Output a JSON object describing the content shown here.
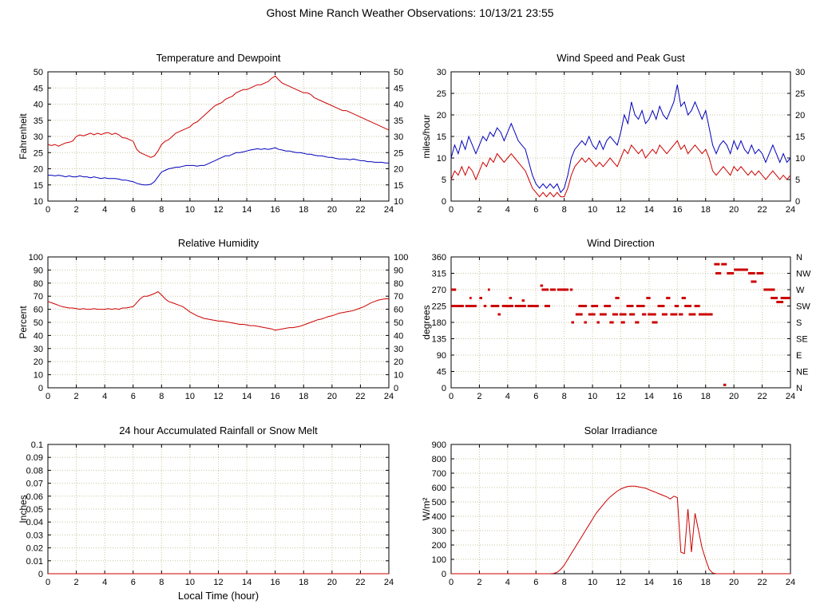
{
  "title": "Ghost Mine Ranch Weather Observations: 10/13/21 23:55",
  "theme": {
    "background": "#ffffff",
    "grid_color": "#c9c5a0",
    "axis_color": "#000000",
    "series_red": "#cc0000",
    "series_blue": "#0000bb"
  },
  "chart_data": [
    {
      "id": "temperature-dewpoint",
      "type": "line",
      "title": "Temperature and Dewpoint",
      "ylabel": "Fahrenheit",
      "xlim": [
        0,
        24
      ],
      "xtick": 2,
      "ylim": [
        10,
        50
      ],
      "ytick": 5,
      "right_labels": "mirror",
      "x_step": 0.25,
      "series": [
        {
          "name": "Temperature",
          "color": "#cc0000",
          "values": [
            27.5,
            27.2,
            27.5,
            27,
            27.5,
            28,
            28.2,
            28.6,
            30,
            30.5,
            30.2,
            30.6,
            31,
            30.5,
            31,
            30.6,
            31,
            31.2,
            30.6,
            31,
            30.5,
            29.6,
            29.5,
            29,
            28.5,
            26,
            25,
            24.5,
            24,
            23.5,
            24,
            25.5,
            27.5,
            28.5,
            29,
            30,
            31,
            31.5,
            32,
            32.5,
            33,
            34,
            34.5,
            35.5,
            36.5,
            37.5,
            38.5,
            39.5,
            40,
            40.5,
            41.5,
            42,
            42.5,
            43.5,
            44,
            44.5,
            44.5,
            45,
            45.5,
            46,
            46,
            46.5,
            47,
            48,
            48.7,
            47.5,
            46.5,
            46,
            45.5,
            45,
            44.5,
            44,
            43.5,
            43.5,
            43,
            42,
            41.5,
            41,
            40.5,
            40,
            39.5,
            39,
            38.5,
            38,
            38,
            37.5,
            37,
            36.5,
            36,
            35.5,
            35,
            34.5,
            34,
            33.5,
            33,
            32.5,
            32
          ]
        },
        {
          "name": "Dewpoint",
          "color": "#0000bb",
          "values": [
            18,
            18,
            17.8,
            18,
            17.8,
            17.5,
            17.8,
            17.5,
            17.5,
            17.8,
            17.5,
            17.5,
            17.2,
            17.5,
            17.2,
            17,
            17.2,
            17,
            17,
            17,
            16.8,
            16.5,
            16.5,
            16.2,
            16,
            15.5,
            15.2,
            15,
            15,
            15.2,
            16,
            17.5,
            19,
            19.5,
            20,
            20.2,
            20.5,
            20.5,
            20.8,
            21,
            21,
            21,
            20.8,
            21,
            21,
            21.5,
            22,
            22.5,
            23,
            23.5,
            24,
            24,
            24.5,
            25,
            25,
            25.2,
            25.5,
            25.8,
            26,
            26.2,
            26,
            26.2,
            26,
            26.2,
            26.5,
            26,
            25.8,
            25.5,
            25.5,
            25.2,
            25,
            25,
            24.8,
            24.5,
            24.5,
            24.2,
            24,
            24,
            23.8,
            23.5,
            23.5,
            23.2,
            23,
            23,
            23,
            22.8,
            23,
            22.8,
            22.5,
            22.5,
            22.2,
            22.2,
            22,
            22,
            22,
            21.8,
            21.8
          ]
        }
      ]
    },
    {
      "id": "wind-speed-gust",
      "type": "line",
      "title": "Wind Speed and Peak Gust",
      "ylabel": "miles/hour",
      "xlim": [
        0,
        24
      ],
      "xtick": 2,
      "ylim": [
        0,
        30
      ],
      "ytick": 5,
      "right_labels": "mirror",
      "x_step": 0.25,
      "series": [
        {
          "name": "Peak Gust",
          "color": "#0000bb",
          "values": [
            10,
            13,
            11,
            14,
            12,
            15,
            13,
            11,
            13,
            15,
            14,
            16,
            15,
            17,
            16,
            14,
            16,
            18,
            16,
            14,
            13,
            12,
            9,
            6,
            4,
            3,
            4,
            3,
            4,
            3,
            4,
            2,
            3,
            6,
            10,
            12,
            13,
            14,
            13,
            15,
            13,
            12,
            14,
            12,
            14,
            15,
            14,
            13,
            16,
            20,
            18,
            23,
            20,
            19,
            21,
            18,
            19,
            21,
            19,
            22,
            20,
            19,
            21,
            23,
            27,
            22,
            23,
            20,
            21,
            23,
            21,
            19,
            21,
            17,
            13,
            11,
            13,
            14,
            13,
            11,
            14,
            12,
            14,
            12,
            11,
            13,
            11,
            12,
            11,
            9,
            11,
            13,
            11,
            9,
            11,
            9,
            10
          ]
        },
        {
          "name": "Wind Speed",
          "color": "#cc0000",
          "values": [
            5,
            7,
            6,
            8,
            6,
            8,
            7,
            5,
            7,
            9,
            8,
            10,
            9,
            11,
            10,
            9,
            10,
            11,
            10,
            9,
            8,
            7,
            5,
            3,
            2,
            1,
            2,
            1,
            2,
            1,
            2,
            1,
            1,
            3,
            6,
            8,
            9,
            10,
            9,
            10,
            9,
            8,
            9,
            8,
            9,
            10,
            9,
            8,
            10,
            12,
            11,
            13,
            12,
            11,
            12,
            10,
            11,
            12,
            11,
            13,
            12,
            11,
            12,
            13,
            14,
            12,
            13,
            11,
            12,
            13,
            12,
            11,
            12,
            10,
            7,
            6,
            7,
            8,
            7,
            6,
            8,
            7,
            8,
            7,
            6,
            7,
            6,
            7,
            6,
            5,
            6,
            7,
            6,
            5,
            6,
            5,
            6
          ]
        }
      ]
    },
    {
      "id": "relative-humidity",
      "type": "line",
      "title": "Relative Humidity",
      "ylabel": "Percent",
      "xlim": [
        0,
        24
      ],
      "xtick": 2,
      "ylim": [
        0,
        100
      ],
      "ytick": 10,
      "right_labels": "mirror",
      "x_step": 0.25,
      "series": [
        {
          "name": "Relative Humidity",
          "color": "#cc0000",
          "values": [
            66,
            65,
            64,
            63,
            62,
            61.5,
            61,
            61,
            60.5,
            60,
            60.5,
            60,
            60,
            60.5,
            60,
            60,
            60,
            60.5,
            60,
            60.5,
            60,
            61,
            61,
            61.5,
            62,
            65,
            68,
            70,
            70,
            71,
            72,
            73.5,
            71,
            68,
            66,
            65,
            64,
            63,
            62,
            60,
            58,
            56.5,
            55,
            54,
            53,
            52.5,
            52,
            51.5,
            51,
            51,
            50.5,
            50,
            49.5,
            49,
            48.5,
            48.5,
            48,
            47.5,
            47.5,
            47,
            46.5,
            46,
            45.5,
            45,
            44,
            44.5,
            45,
            45.5,
            46,
            46,
            46.5,
            47,
            48,
            49,
            50,
            51,
            52,
            52.5,
            53.5,
            54.5,
            55,
            56,
            57,
            57.5,
            58,
            58.5,
            59,
            60,
            61,
            62,
            63.5,
            65,
            66,
            67,
            67.5,
            68,
            68
          ]
        }
      ]
    },
    {
      "id": "wind-direction",
      "type": "scatter",
      "title": "Wind Direction",
      "ylabel": "degrees",
      "xlim": [
        0,
        24
      ],
      "xtick": 2,
      "ylim": [
        0,
        360
      ],
      "ytick": 45,
      "right_labels": [
        "N",
        "NE",
        "E",
        "SE",
        "S",
        "SW",
        "W",
        "NW",
        "N"
      ],
      "series": [
        {
          "name": "Wind Direction",
          "color": "#cc0000",
          "segments": [
            [
              0,
              0.35,
              270
            ],
            [
              0,
              0.9,
              225
            ],
            [
              1,
              1.8,
              225
            ],
            [
              1.3,
              1.45,
              247
            ],
            [
              2,
              2.2,
              247
            ],
            [
              2.3,
              2.5,
              225
            ],
            [
              2.6,
              2.75,
              270
            ],
            [
              2.8,
              3.4,
              225
            ],
            [
              3.3,
              3.5,
              202
            ],
            [
              3.6,
              4.4,
              225
            ],
            [
              4.1,
              4.3,
              247
            ],
            [
              4.5,
              5.3,
              225
            ],
            [
              5,
              5.2,
              240
            ],
            [
              5.4,
              6.2,
              225
            ],
            [
              6.3,
              6.5,
              281
            ],
            [
              6.4,
              6.9,
              270
            ],
            [
              6.6,
              7,
              225
            ],
            [
              7,
              7.4,
              270
            ],
            [
              7.5,
              8.3,
              270
            ],
            [
              8.4,
              8.6,
              270
            ],
            [
              8.5,
              8.7,
              180
            ],
            [
              8.8,
              9.3,
              202
            ],
            [
              9,
              9.6,
              225
            ],
            [
              9.4,
              9.6,
              180
            ],
            [
              9.7,
              10.2,
              202
            ],
            [
              9.9,
              10.4,
              225
            ],
            [
              10.3,
              10.5,
              180
            ],
            [
              10.5,
              11,
              202
            ],
            [
              10.8,
              11.3,
              225
            ],
            [
              11.2,
              11.5,
              180
            ],
            [
              11.4,
              11.8,
              202
            ],
            [
              11.6,
              11.9,
              247
            ],
            [
              11.9,
              12.4,
              202
            ],
            [
              12,
              12.3,
              180
            ],
            [
              12.4,
              12.9,
              225
            ],
            [
              12.6,
              13,
              202
            ],
            [
              13,
              13.3,
              180
            ],
            [
              13.1,
              13.7,
              225
            ],
            [
              13.5,
              13.8,
              202
            ],
            [
              13.8,
              14.1,
              247
            ],
            [
              13.9,
              14.5,
              202
            ],
            [
              14.2,
              14.6,
              180
            ],
            [
              14.6,
              15.1,
              225
            ],
            [
              14.9,
              15.3,
              202
            ],
            [
              15.2,
              15.5,
              247
            ],
            [
              15.5,
              16,
              202
            ],
            [
              15.8,
              16.1,
              225
            ],
            [
              16.1,
              16.4,
              202
            ],
            [
              16.3,
              16.6,
              247
            ],
            [
              16.5,
              17,
              225
            ],
            [
              16.8,
              17.3,
              202
            ],
            [
              17.2,
              17.6,
              225
            ],
            [
              17.5,
              18.1,
              202
            ],
            [
              18,
              18.5,
              202
            ],
            [
              18.6,
              19,
              340
            ],
            [
              18.7,
              19.1,
              315
            ],
            [
              19.1,
              19.5,
              340
            ],
            [
              19.25,
              19.45,
              8
            ],
            [
              19.5,
              20,
              315
            ],
            [
              20,
              21,
              325
            ],
            [
              21,
              21.5,
              315
            ],
            [
              21.2,
              21.6,
              292
            ],
            [
              21.6,
              22.1,
              315
            ],
            [
              22.1,
              22.9,
              270
            ],
            [
              22.6,
              23.1,
              247
            ],
            [
              23,
              23.5,
              236
            ],
            [
              23.3,
              24,
              247
            ]
          ]
        }
      ]
    },
    {
      "id": "rainfall",
      "type": "line",
      "title": "24 hour Accumulated Rainfall or Snow Melt",
      "ylabel": "Inches",
      "xlabel": "Local Time (hour)",
      "xlim": [
        0,
        24
      ],
      "xtick": 2,
      "ylim": [
        0,
        0.1
      ],
      "ytick": 0.01,
      "series": [
        {
          "name": "Rainfall",
          "color": "#cc0000",
          "x": [
            0,
            24
          ],
          "values": [
            0,
            0
          ]
        }
      ]
    },
    {
      "id": "solar-irradiance",
      "type": "line",
      "title": "Solar Irradiance",
      "ylabel": "W/m²",
      "xlim": [
        0,
        24
      ],
      "xtick": 2,
      "ylim": [
        0,
        900
      ],
      "ytick": 100,
      "x_step": 0.25,
      "series": [
        {
          "name": "Solar Irradiance",
          "color": "#cc0000",
          "values": [
            0,
            0,
            0,
            0,
            0,
            0,
            0,
            0,
            0,
            0,
            0,
            0,
            0,
            0,
            0,
            0,
            0,
            0,
            0,
            0,
            0,
            0,
            0,
            0,
            0,
            0,
            0,
            0,
            0,
            2,
            10,
            30,
            60,
            100,
            140,
            180,
            220,
            260,
            300,
            340,
            380,
            420,
            450,
            480,
            510,
            535,
            555,
            575,
            590,
            600,
            608,
            610,
            610,
            605,
            600,
            595,
            585,
            575,
            565,
            555,
            545,
            535,
            520,
            540,
            530,
            150,
            140,
            450,
            150,
            420,
            300,
            180,
            100,
            30,
            5,
            0,
            0,
            0,
            0,
            0,
            0,
            0,
            0,
            0,
            0,
            0,
            0,
            0,
            0,
            0,
            0,
            0,
            0,
            0,
            0,
            0,
            0
          ]
        }
      ]
    }
  ]
}
